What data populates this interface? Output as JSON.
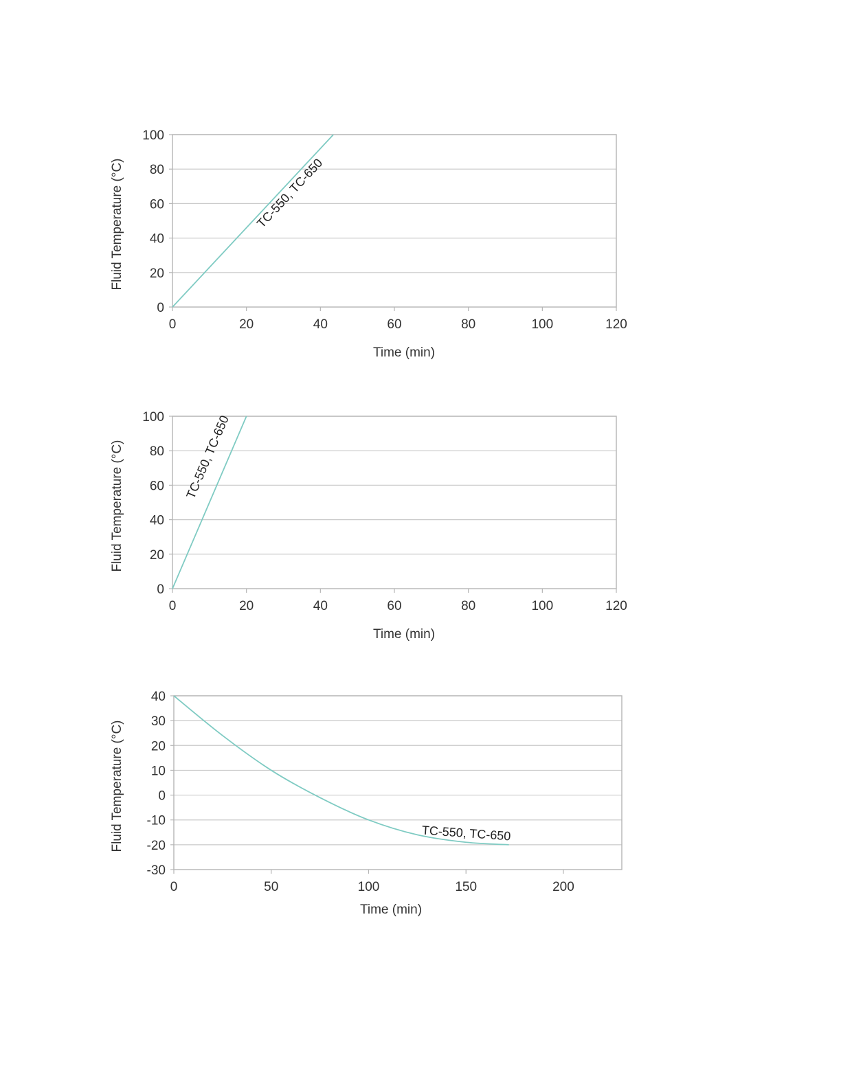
{
  "chart_data": [
    {
      "type": "line",
      "title": "",
      "xlabel": "Time (min)",
      "ylabel": "Fluid Temperature (°C)",
      "xlim": [
        0,
        120
      ],
      "ylim": [
        0,
        100
      ],
      "xticks": [
        0,
        20,
        40,
        60,
        80,
        100,
        120
      ],
      "yticks": [
        0,
        20,
        40,
        60,
        80,
        100
      ],
      "grid": "horizontal",
      "series": [
        {
          "name": "TC-550, TC-650",
          "color": "#7fcbc3",
          "x": [
            0,
            43.5
          ],
          "y": [
            0,
            100
          ]
        }
      ]
    },
    {
      "type": "line",
      "title": "",
      "xlabel": "Time (min)",
      "ylabel": "Fluid Temperature (°C)",
      "xlim": [
        0,
        120
      ],
      "ylim": [
        0,
        100
      ],
      "xticks": [
        0,
        20,
        40,
        60,
        80,
        100,
        120
      ],
      "yticks": [
        0,
        20,
        40,
        60,
        80,
        100
      ],
      "grid": "horizontal",
      "series": [
        {
          "name": "TC-550, TC-650",
          "color": "#7fcbc3",
          "x": [
            0,
            20
          ],
          "y": [
            0,
            100
          ]
        }
      ]
    },
    {
      "type": "line",
      "title": "",
      "xlabel": "Time (min)",
      "ylabel": "Fluid Temperature (°C)",
      "xlim": [
        0,
        230
      ],
      "ylim": [
        -30,
        40
      ],
      "xticks": [
        0,
        50,
        100,
        150,
        200
      ],
      "yticks": [
        -30,
        -20,
        -10,
        0,
        10,
        20,
        30,
        40
      ],
      "grid": "horizontal",
      "series": [
        {
          "name": "TC-550, TC-650",
          "color": "#7fcbc3",
          "x": [
            0,
            25,
            50,
            75,
            100,
            125,
            150,
            172
          ],
          "y": [
            40,
            24,
            10,
            -1,
            -10,
            -16,
            -19,
            -20
          ]
        }
      ]
    }
  ]
}
